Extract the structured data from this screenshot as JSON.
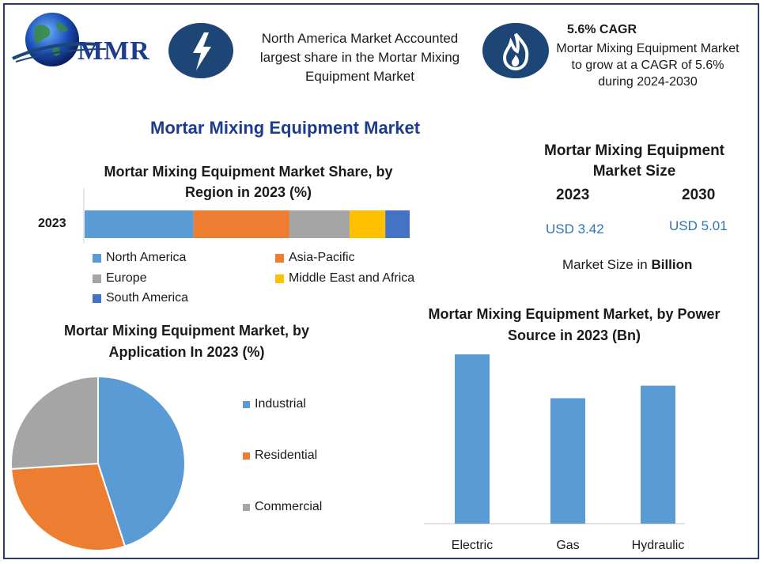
{
  "header": {
    "logo_text": "MMR",
    "highlight1": "North America Market Accounted largest share in the Mortar Mixing Equipment Market",
    "cagr_title": "5.6% CAGR",
    "cagr_text": "Mortar Mixing Equipment Market to grow at a CAGR of 5.6% during 2024-2030"
  },
  "main_title": "Mortar Mixing Equipment Market",
  "market_size": {
    "title": "Mortar Mixing Equipment Market Size",
    "year1": "2023",
    "year2": "2030",
    "value1": "USD 3.42",
    "value2": "USD 5.01",
    "unit_prefix": "Market Size in ",
    "unit_bold": "Billion"
  },
  "colors": {
    "north_america": "#5b9bd5",
    "asia_pacific": "#ed7d31",
    "europe": "#a5a5a5",
    "mea": "#ffc000",
    "south_america": "#4472c4",
    "navy": "#1d4677",
    "value_blue": "#2e75b6"
  },
  "chart_data": [
    {
      "type": "bar",
      "stacked": true,
      "orientation": "horizontal",
      "title": "Mortar Mixing Equipment Market Share, by Region in 2023 (%)",
      "categories": [
        "2023"
      ],
      "series": [
        {
          "name": "North America",
          "values": [
            33.5
          ]
        },
        {
          "name": "Asia-Pacific",
          "values": [
            29.5
          ]
        },
        {
          "name": "Europe",
          "values": [
            18.5
          ]
        },
        {
          "name": "Middle East and Africa",
          "values": [
            11
          ]
        },
        {
          "name": "South America",
          "values": [
            7.5
          ]
        }
      ],
      "legend": "bottom"
    },
    {
      "type": "pie",
      "title": "Mortar Mixing Equipment Market, by Application In 2023 (%)",
      "labels": [
        "Industrial",
        "Residential",
        "Commercial"
      ],
      "values": [
        45,
        29,
        26
      ],
      "legend": "right"
    },
    {
      "type": "bar",
      "title": "Mortar Mixing Equipment Market, by Power Source in 2023 (Bn)",
      "categories": [
        "Electric",
        "Gas",
        "Hydraulic"
      ],
      "values": [
        1.35,
        1.0,
        1.1
      ],
      "ylim": [
        0,
        1.4
      ],
      "grid": false
    }
  ]
}
